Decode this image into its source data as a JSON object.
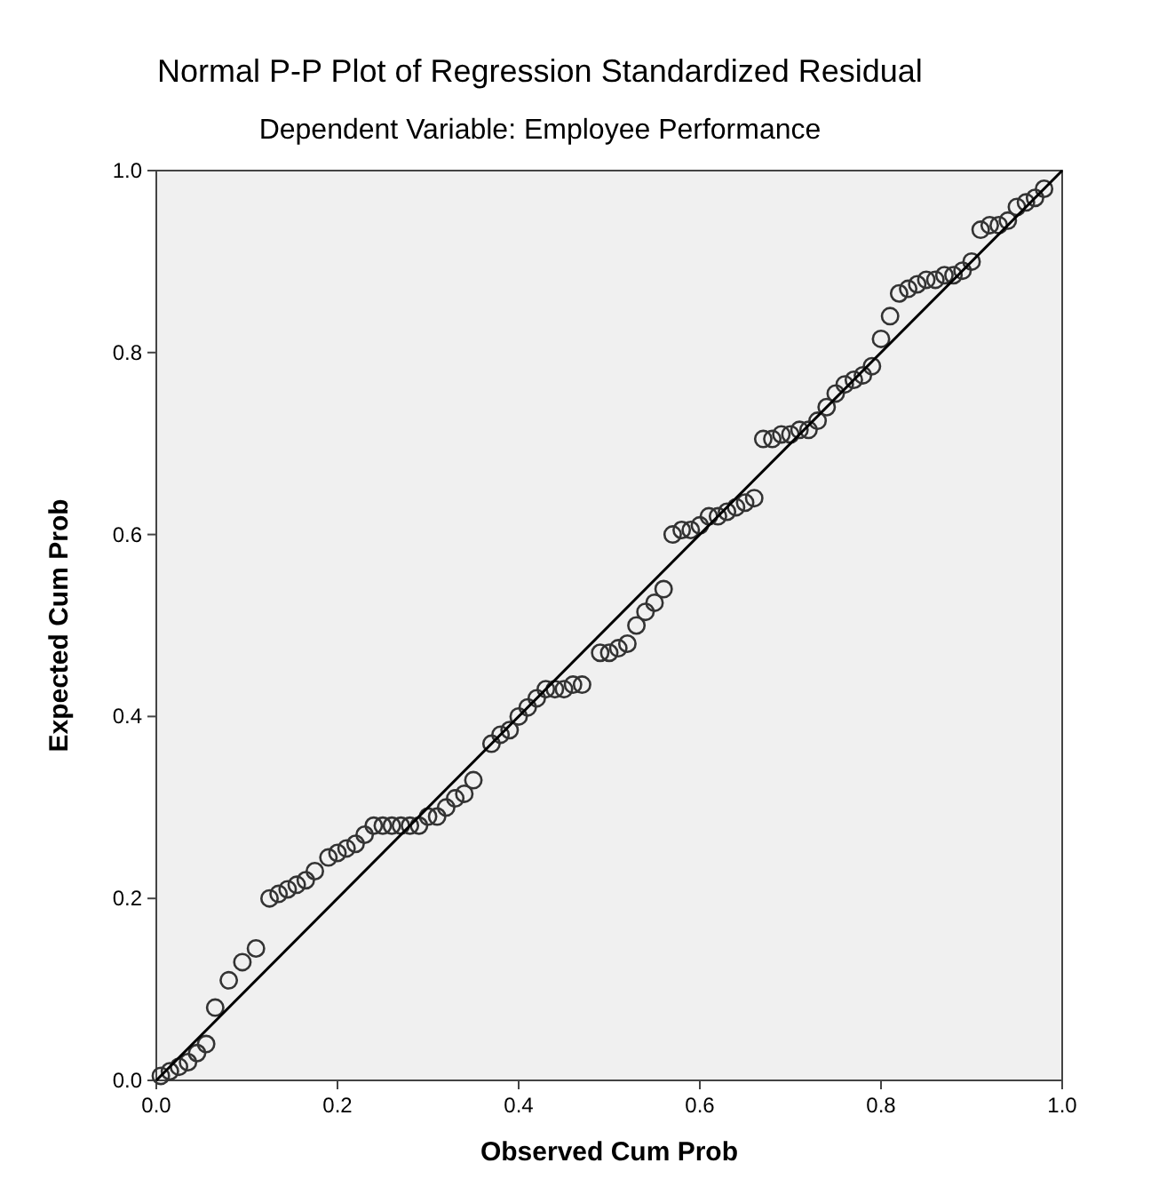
{
  "chart_data": {
    "type": "scatter",
    "title": "Normal P-P Plot of Regression Standardized Residual",
    "subtitle": "Dependent Variable: Employee Performance",
    "xlabel": "Observed Cum Prob",
    "ylabel": "Expected Cum Prob",
    "xlim": [
      0,
      1
    ],
    "ylim": [
      0,
      1
    ],
    "xticks": [
      {
        "value": 0,
        "label": "0.0"
      },
      {
        "value": 0.2,
        "label": "0.2"
      },
      {
        "value": 0.4,
        "label": "0.4"
      },
      {
        "value": 0.6,
        "label": "0.6"
      },
      {
        "value": 0.8,
        "label": "0.8"
      },
      {
        "value": 1,
        "label": "1.0"
      }
    ],
    "yticks": [
      {
        "value": 0,
        "label": "0.0"
      },
      {
        "value": 0.2,
        "label": "0.2"
      },
      {
        "value": 0.4,
        "label": "0.4"
      },
      {
        "value": 0.6,
        "label": "0.6"
      },
      {
        "value": 0.8,
        "label": "0.8"
      },
      {
        "value": 1,
        "label": "1.0"
      }
    ],
    "grid": false,
    "series": [
      {
        "marker": "circle",
        "color": "#333333",
        "x": [
          0.005,
          0.015,
          0.025,
          0.035,
          0.045,
          0.055,
          0.065,
          0.08,
          0.095,
          0.11,
          0.125,
          0.135,
          0.145,
          0.155,
          0.165,
          0.175,
          0.19,
          0.2,
          0.21,
          0.22,
          0.23,
          0.24,
          0.25,
          0.26,
          0.27,
          0.28,
          0.29,
          0.3,
          0.31,
          0.32,
          0.33,
          0.34,
          0.35,
          0.37,
          0.38,
          0.39,
          0.4,
          0.41,
          0.42,
          0.43,
          0.44,
          0.45,
          0.46,
          0.47,
          0.49,
          0.5,
          0.51,
          0.52,
          0.53,
          0.54,
          0.55,
          0.56,
          0.57,
          0.58,
          0.59,
          0.6,
          0.61,
          0.62,
          0.63,
          0.64,
          0.65,
          0.66,
          0.67,
          0.68,
          0.69,
          0.7,
          0.71,
          0.72,
          0.73,
          0.74,
          0.75,
          0.76,
          0.77,
          0.78,
          0.79,
          0.8,
          0.81,
          0.82,
          0.83,
          0.84,
          0.85,
          0.86,
          0.87,
          0.88,
          0.89,
          0.9,
          0.91,
          0.92,
          0.93,
          0.94,
          0.95,
          0.96,
          0.97,
          0.98
        ],
        "values": [
          0.005,
          0.01,
          0.015,
          0.02,
          0.03,
          0.04,
          0.08,
          0.11,
          0.13,
          0.145,
          0.2,
          0.205,
          0.21,
          0.215,
          0.22,
          0.23,
          0.245,
          0.25,
          0.255,
          0.26,
          0.27,
          0.28,
          0.28,
          0.28,
          0.28,
          0.28,
          0.28,
          0.29,
          0.29,
          0.3,
          0.31,
          0.315,
          0.33,
          0.37,
          0.38,
          0.385,
          0.4,
          0.41,
          0.42,
          0.43,
          0.43,
          0.43,
          0.435,
          0.435,
          0.47,
          0.47,
          0.475,
          0.48,
          0.5,
          0.515,
          0.525,
          0.54,
          0.6,
          0.605,
          0.605,
          0.61,
          0.62,
          0.62,
          0.625,
          0.63,
          0.635,
          0.64,
          0.705,
          0.705,
          0.71,
          0.71,
          0.715,
          0.715,
          0.725,
          0.74,
          0.755,
          0.765,
          0.77,
          0.775,
          0.785,
          0.815,
          0.84,
          0.865,
          0.87,
          0.875,
          0.88,
          0.88,
          0.885,
          0.885,
          0.89,
          0.9,
          0.935,
          0.94,
          0.94,
          0.945,
          0.96,
          0.965,
          0.97,
          0.98
        ]
      },
      {
        "type": "line",
        "color": "#000000",
        "x": [
          0,
          1
        ],
        "values": [
          0,
          1
        ]
      }
    ]
  }
}
